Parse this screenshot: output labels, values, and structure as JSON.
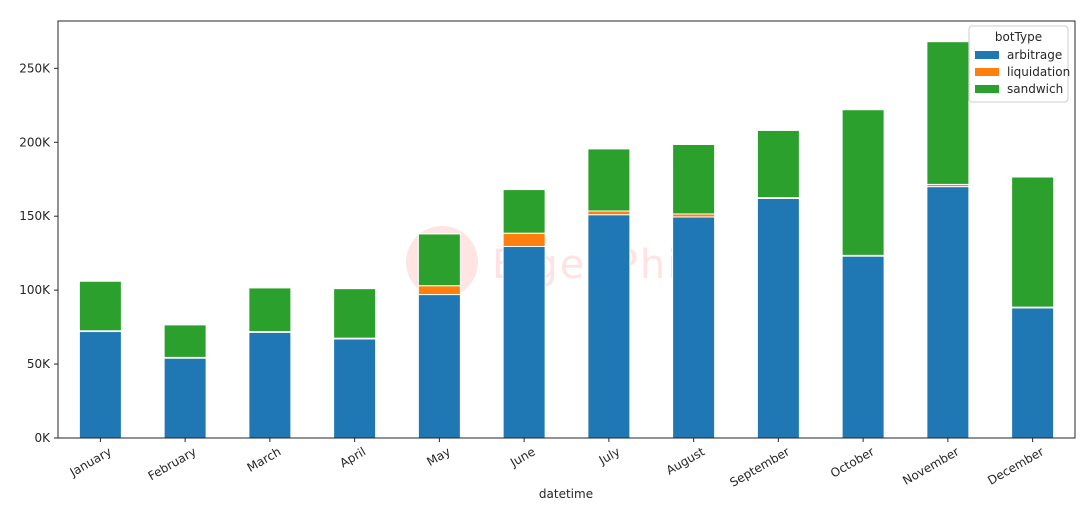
{
  "chart_data": {
    "type": "bar",
    "stacked": true,
    "categories": [
      "January",
      "February",
      "March",
      "April",
      "May",
      "June",
      "July",
      "August",
      "September",
      "October",
      "November",
      "December"
    ],
    "series": [
      {
        "name": "arbitrage",
        "color": "#1f77b4",
        "values": [
          72000,
          54000,
          71500,
          67000,
          97000,
          129500,
          151000,
          149500,
          162000,
          123000,
          170000,
          88000
        ]
      },
      {
        "name": "liquidation",
        "color": "#ff7f0e",
        "values": [
          500,
          500,
          500,
          500,
          6000,
          9000,
          2500,
          2000,
          500,
          500,
          1500,
          500
        ]
      },
      {
        "name": "sandwich",
        "color": "#2ca02c",
        "values": [
          33500,
          22000,
          29500,
          33500,
          35000,
          29500,
          42000,
          47000,
          45500,
          98500,
          96500,
          88000
        ]
      }
    ],
    "xlabel": "datetime",
    "ylabel": "",
    "ylim": [
      0,
      282000
    ],
    "yticks": [
      0,
      50000,
      100000,
      150000,
      200000,
      250000
    ],
    "ytick_labels": [
      "0K",
      "50K",
      "100K",
      "150K",
      "200K",
      "250K"
    ],
    "legend": {
      "title": "botType",
      "position": "top-right"
    },
    "grid": false
  },
  "watermark": {
    "text": "EigenPhi"
  }
}
